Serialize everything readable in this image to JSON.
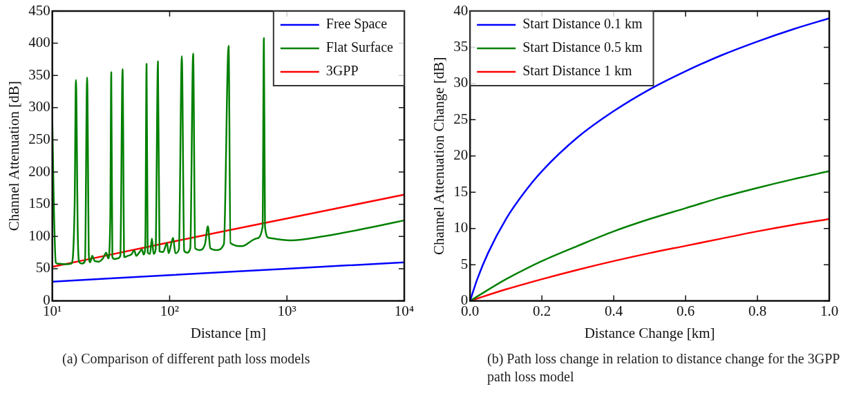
{
  "chart_data": [
    {
      "type": "line",
      "xlabel": "Distance [m]",
      "ylabel": "Channel Attenuation [dB]",
      "log": "x",
      "xlim": [
        10,
        10000
      ],
      "ylim": [
        0,
        450
      ],
      "xticks": [
        {
          "value": 10,
          "label": "10¹"
        },
        {
          "value": 100,
          "label": "10²"
        },
        {
          "value": 1000,
          "label": "10³"
        },
        {
          "value": 10000,
          "label": "10⁴"
        }
      ],
      "yticks": [
        0,
        50,
        100,
        150,
        200,
        250,
        300,
        350,
        400,
        450
      ],
      "grid": false,
      "legend": "top right",
      "marker": "none",
      "line_style": "solid",
      "annotations": [
        "(a) Comparison of different path loss models"
      ],
      "series": [
        {
          "name": "Free Space",
          "color": "#0000ff",
          "x": [
            10,
            100,
            1000,
            10000
          ],
          "values": [
            30,
            40,
            50,
            60
          ]
        },
        {
          "name": "Flat Surface",
          "color": "#008000",
          "x": [
            10,
            10.3,
            10.7,
            11,
            13,
            14.5,
            15.5,
            15.9,
            16.5,
            17,
            18,
            19,
            19.8,
            20.5,
            21,
            21.9,
            23,
            25,
            27,
            28.8,
            30,
            31.2,
            31.8,
            32.5,
            34,
            36,
            38,
            39.7,
            41,
            44,
            47,
            50,
            52,
            55,
            58,
            60,
            62,
            63.6,
            65,
            68,
            70.6,
            73,
            76,
            79.5,
            82,
            88,
            95,
            98,
            107,
            112,
            120,
            127,
            133,
            141,
            150,
            158.6,
            165,
            179,
            200,
            212,
            222,
            250,
            290,
            318,
            330,
            412,
            550,
            620,
            636,
            650,
            700,
            1070,
            2000,
            4000,
            10000
          ],
          "values": [
            282,
            150,
            60,
            58,
            57,
            58,
            150,
            343,
            100,
            60,
            58,
            62,
            347,
            70,
            60,
            70,
            62,
            61,
            66,
            75,
            66,
            130,
            355,
            68,
            65,
            66,
            70,
            360,
            68,
            70,
            72,
            78,
            70,
            75,
            80,
            72,
            85,
            368,
            75,
            73,
            97,
            73,
            80,
            372,
            77,
            76,
            90,
            74,
            98,
            74,
            80,
            380,
            78,
            75,
            82,
            384,
            82,
            79,
            88,
            116,
            82,
            79,
            88,
            396,
            90,
            85,
            97,
            115,
            408,
            115,
            98,
            94,
            100,
            110,
            125
          ]
        },
        {
          "name": "3GPP",
          "color": "#ff0000",
          "x": [
            10,
            100,
            1000,
            10000
          ],
          "values": [
            53,
            91,
            128,
            165
          ]
        }
      ]
    },
    {
      "type": "line",
      "xlabel": "Distance Change [km]",
      "ylabel": "Channel Attenuation Change [dB]",
      "xlim": [
        0,
        1
      ],
      "ylim": [
        0,
        40
      ],
      "xticks": [
        {
          "value": 0,
          "label": "0.0"
        },
        {
          "value": 0.2,
          "label": "0.2"
        },
        {
          "value": 0.4,
          "label": "0.4"
        },
        {
          "value": 0.6,
          "label": "0.6"
        },
        {
          "value": 0.8,
          "label": "0.8"
        },
        {
          "value": 1,
          "label": "1.0"
        }
      ],
      "yticks": [
        0,
        5,
        10,
        15,
        20,
        25,
        30,
        35,
        40
      ],
      "grid": false,
      "legend": "top left",
      "marker": "none",
      "line_style": "solid",
      "annotations": [
        "(b) Path loss change in relation to distance change for the 3GPP path loss model"
      ],
      "series": [
        {
          "name": "Start Distance 0.1 km",
          "color": "#0000ff",
          "x": [
            0,
            0.02,
            0.05,
            0.1,
            0.15,
            0.2,
            0.3,
            0.4,
            0.5,
            0.6,
            0.7,
            0.8,
            0.9,
            1
          ],
          "values": [
            0,
            3,
            6.6,
            11.3,
            14.9,
            17.9,
            22.6,
            26.2,
            29.2,
            31.7,
            33.9,
            35.8,
            37.5,
            39
          ]
        },
        {
          "name": "Start Distance 0.5 km",
          "color": "#008000",
          "x": [
            0,
            0.1,
            0.2,
            0.3,
            0.4,
            0.5,
            0.6,
            0.7,
            0.8,
            0.9,
            1
          ],
          "values": [
            0,
            3,
            5.5,
            7.6,
            9.6,
            11.3,
            12.8,
            14.3,
            15.6,
            16.8,
            17.9
          ]
        },
        {
          "name": "Start Distance 1 km",
          "color": "#ff0000",
          "x": [
            0,
            0.1,
            0.2,
            0.3,
            0.4,
            0.5,
            0.6,
            0.7,
            0.8,
            0.9,
            1
          ],
          "values": [
            0,
            1.6,
            3,
            4.3,
            5.5,
            6.6,
            7.6,
            8.6,
            9.6,
            10.5,
            11.3
          ]
        }
      ]
    }
  ]
}
